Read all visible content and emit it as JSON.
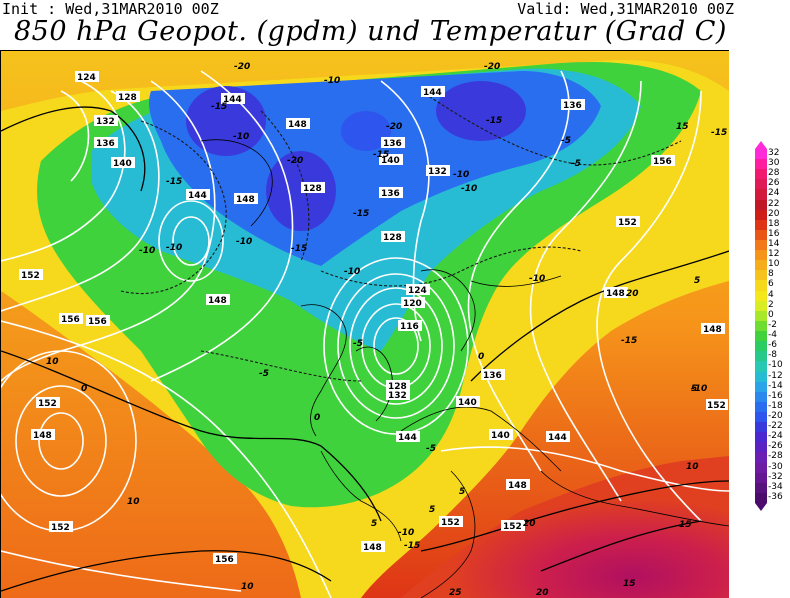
{
  "header": {
    "init_text": "Init : Wed,31MAR2010 00Z",
    "valid_text": "Valid: Wed,31MAR2010 00Z",
    "title": "850 hPa Geopot. (gpdm) und Temperatur (Grad C)"
  },
  "map": {
    "description_colors": {
      "deep_cold": "#3a3adc",
      "cold": "#2a7cf0",
      "cool": "#2bc8d8",
      "neutral": "#28d250",
      "mild": "#7fe03a",
      "warm": "#f6e51c",
      "warmer": "#f6a91c",
      "hot": "#ee5a18",
      "very_hot": "#cc1f4c"
    },
    "geopotential_labels": [
      "124",
      "128",
      "132",
      "136",
      "140",
      "144",
      "148",
      "148",
      "144",
      "140",
      "136",
      "132",
      "128",
      "124",
      "120",
      "116",
      "128",
      "132",
      "136",
      "140",
      "144",
      "148",
      "152",
      "156",
      "152",
      "148",
      "152",
      "156",
      "152",
      "148",
      "152",
      "156",
      "152",
      "128",
      "136",
      "140",
      "144",
      "148",
      "152",
      "148",
      "144",
      "152",
      "156",
      "148",
      "140",
      "136",
      "148",
      "144",
      "132",
      "136",
      "140",
      "148",
      "128",
      "140",
      "132",
      "136",
      "140",
      "144",
      "144",
      "144",
      "144",
      "148",
      "148",
      "144",
      "140",
      "136",
      "156",
      "152"
    ],
    "temperature_labels": [
      "-20",
      "-15",
      "-10",
      "-20",
      "-15",
      "-20",
      "-15",
      "-10",
      "-20",
      "-15",
      "-10",
      "-15",
      "-10",
      "-5",
      "-10",
      "-15",
      "-10",
      "-5",
      "-10",
      "-10",
      "-5",
      "0",
      "5",
      "10",
      "-5",
      "0",
      "5",
      "10",
      "15",
      "20",
      "25",
      "20",
      "15",
      "10",
      "5",
      "5",
      "10",
      "15",
      "20",
      "5",
      "-5",
      "-10",
      "-15",
      "-10",
      "-15",
      "-10",
      "-15",
      "0",
      "5",
      "0",
      "-5",
      "5",
      "5",
      "10",
      "5",
      "5",
      "5",
      "10",
      "5",
      "5",
      "10",
      "10",
      "15",
      "5",
      "10",
      "10"
    ]
  },
  "scale": {
    "labels": [
      "32",
      "30",
      "28",
      "26",
      "24",
      "22",
      "20",
      "18",
      "16",
      "14",
      "12",
      "10",
      "8",
      "6",
      "4",
      "2",
      "0",
      "-2",
      "-4",
      "-6",
      "-8",
      "-10",
      "-12",
      "-14",
      "-16",
      "-18",
      "-20",
      "-22",
      "-24",
      "-26",
      "-28",
      "-30",
      "-32",
      "-34",
      "-36"
    ],
    "colors": [
      "#ff2bd8",
      "#ff1ea0",
      "#f21a70",
      "#e01a56",
      "#d11a3c",
      "#c11825",
      "#cf1e18",
      "#de3516",
      "#ea5616",
      "#f27819",
      "#f6941a",
      "#f6ad1b",
      "#f6c31c",
      "#f6d91c",
      "#f4e81c",
      "#d8ee22",
      "#a8e82a",
      "#6fdc32",
      "#3fd23c",
      "#2bcc62",
      "#26c98a",
      "#27c8b4",
      "#28bcd4",
      "#2aa4e8",
      "#2a88ee",
      "#2a6ef0",
      "#2e55ee",
      "#3a3adc",
      "#4a2ad0",
      "#5a22c2",
      "#6a1eb4",
      "#6e1aa2",
      "#661690",
      "#58127e",
      "#4b0c6b"
    ]
  }
}
